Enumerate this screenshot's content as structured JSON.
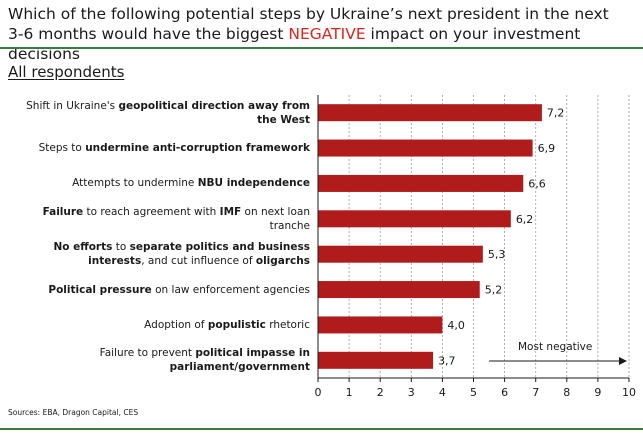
{
  "title": {
    "line1": "Which of the following potential steps by Ukraine’s next president in the next",
    "line2_before": "3-6 months would have the biggest ",
    "line2_highlight": "NEGATIVE",
    "line2_after": " impact on your investment decisions"
  },
  "subtitle": "All respondents",
  "sources": "Sources: EBA, Dragon Capital, CES",
  "colors": {
    "bar": "#b01c1c",
    "accent": "#e0241b",
    "rule": "#3d7a3a"
  },
  "chart_data": {
    "type": "bar",
    "orientation": "horizontal",
    "categories": [
      [
        {
          "t": "Shift in Ukraine's ",
          "b": false
        },
        {
          "t": "geopolitical direction away from",
          "b": true
        },
        {
          "br": true
        },
        {
          "t": "the West",
          "b": true
        }
      ],
      [
        {
          "t": "Steps to ",
          "b": false
        },
        {
          "t": "undermine anti-corruption framework",
          "b": true
        }
      ],
      [
        {
          "t": "Attempts to undermine ",
          "b": false
        },
        {
          "t": "NBU independence",
          "b": true
        }
      ],
      [
        {
          "t": "Failure",
          "b": true
        },
        {
          "t": " to reach agreement with ",
          "b": false
        },
        {
          "t": "IMF",
          "b": true
        },
        {
          "t": " on next loan",
          "b": false
        },
        {
          "br": true
        },
        {
          "t": "tranche",
          "b": false
        }
      ],
      [
        {
          "t": "No efforts",
          "b": true
        },
        {
          "t": " to ",
          "b": false
        },
        {
          "t": "separate politics and business",
          "b": true
        },
        {
          "br": true
        },
        {
          "t": "interests",
          "b": true
        },
        {
          "t": ", and cut influence of ",
          "b": false
        },
        {
          "t": "oligarchs",
          "b": true
        }
      ],
      [
        {
          "t": "Political pressure",
          "b": true
        },
        {
          "t": " on law enforcement agencies",
          "b": false
        }
      ],
      [
        {
          "t": "Adoption of ",
          "b": false
        },
        {
          "t": "populistic",
          "b": true
        },
        {
          "t": " rhetoric",
          "b": false
        }
      ],
      [
        {
          "t": "Failure to prevent ",
          "b": false
        },
        {
          "t": "political impasse in",
          "b": true
        },
        {
          "br": true
        },
        {
          "t": "parliament/government",
          "b": true
        }
      ]
    ],
    "values": [
      7.2,
      6.9,
      6.6,
      6.2,
      5.3,
      5.2,
      4.0,
      3.7
    ],
    "value_labels": [
      "7,2",
      "6,9",
      "6,6",
      "6,2",
      "5,3",
      "5,2",
      "4,0",
      "3,7"
    ],
    "xlim": [
      0,
      10
    ],
    "xticks": [
      "0",
      "1",
      "2",
      "3",
      "4",
      "5",
      "6",
      "7",
      "8",
      "9",
      "10"
    ],
    "vertical_gridlines": "dashed",
    "annotation": {
      "text": "Most negative",
      "arrow_from": 5.5,
      "arrow_to": 10
    }
  }
}
